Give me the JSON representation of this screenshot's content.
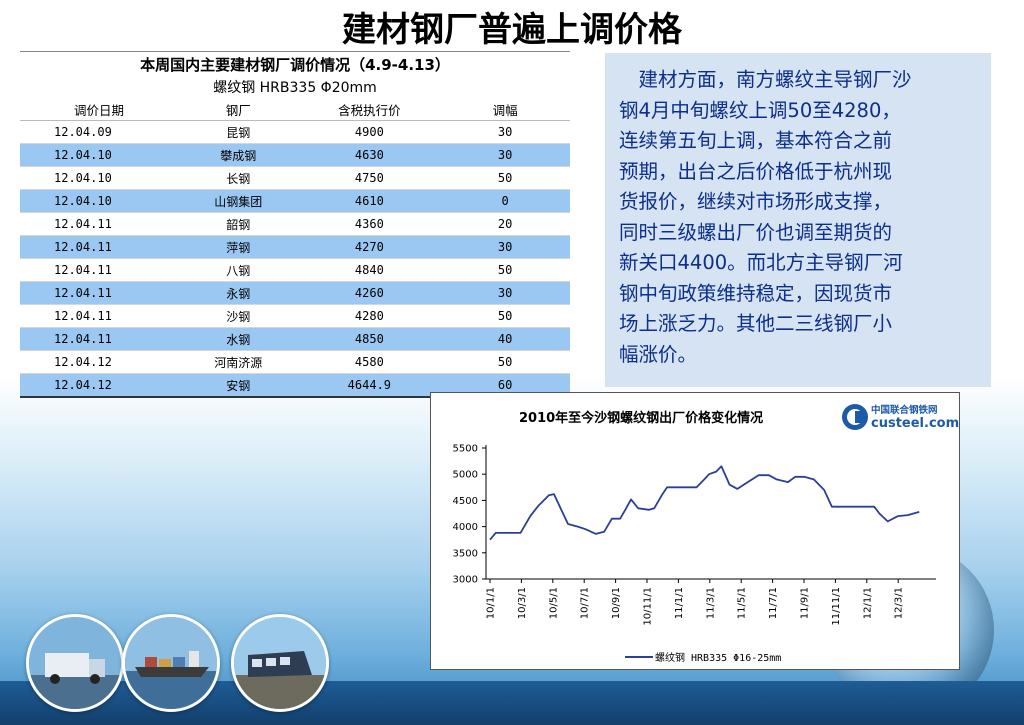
{
  "slide": {
    "title": "建材钢厂普遍上调价格"
  },
  "table": {
    "caption": "本周国内主要建材钢厂调价情况（4.9-4.13）",
    "subcaption": "螺纹钢 HRB335 Φ20mm",
    "headers": [
      "调价日期",
      "钢厂",
      "含税执行价",
      "调幅"
    ],
    "rows": [
      [
        "12.04.09",
        "昆钢",
        "4900",
        "30"
      ],
      [
        "12.04.10",
        "攀成钢",
        "4630",
        "30"
      ],
      [
        "12.04.10",
        "长钢",
        "4750",
        "50"
      ],
      [
        "12.04.10",
        "山钢集团",
        "4610",
        "0"
      ],
      [
        "12.04.11",
        "韶钢",
        "4360",
        "20"
      ],
      [
        "12.04.11",
        "萍钢",
        "4270",
        "30"
      ],
      [
        "12.04.11",
        "八钢",
        "4840",
        "50"
      ],
      [
        "12.04.11",
        "永钢",
        "4260",
        "30"
      ],
      [
        "12.04.11",
        "沙钢",
        "4280",
        "50"
      ],
      [
        "12.04.11",
        "水钢",
        "4850",
        "40"
      ],
      [
        "12.04.12",
        "河南济源",
        "4580",
        "50"
      ],
      [
        "12.04.12",
        "安钢",
        "4644.9",
        "60"
      ]
    ],
    "stripe_color": "#9bc8f2"
  },
  "commentary": {
    "lines": [
      "　建材方面，南方螺纹主导钢厂沙",
      "钢4月中旬螺纹上调50至4280，",
      "连续第五旬上调，基本符合之前",
      "预期，出台之后价格低于杭州现",
      "货报价，继续对市场形成支撑，",
      "同时三级螺出厂价也调至期货的",
      "新关口4400。而北方主导钢厂河",
      "钢中旬政策维持稳定，因现货市",
      "场上涨乏力。其他二三线钢厂小",
      "幅涨价。"
    ],
    "color": "#0b2f8a",
    "background": "#d6e3f2"
  },
  "logo": {
    "cn": "中国联合钢铁网",
    "en": "custeel.com"
  },
  "chart_data": {
    "type": "line",
    "title": "2010年至今沙钢螺纹钢出厂价格变化情况",
    "x_tick_labels": [
      "10/1/1",
      "10/3/1",
      "10/5/1",
      "10/7/1",
      "10/9/1",
      "10/11/1",
      "11/1/1",
      "11/3/1",
      "11/5/1",
      "11/7/1",
      "11/9/1",
      "11/11/1",
      "12/1/1",
      "12/3/1"
    ],
    "ylim": [
      3000,
      5500
    ],
    "y_ticks": [
      3000,
      3500,
      4000,
      4500,
      5000,
      5500
    ],
    "series": [
      {
        "name": "螺纹钢 HRB335 Φ16-25mm",
        "color": "#2a3f9a",
        "x": [
          "2010-01-01",
          "2010-01-12",
          "2010-02-01",
          "2010-03-01",
          "2010-03-20",
          "2010-04-05",
          "2010-04-25",
          "2010-05-05",
          "2010-05-20",
          "2010-06-01",
          "2010-06-20",
          "2010-07-05",
          "2010-07-25",
          "2010-08-10",
          "2010-08-25",
          "2010-09-10",
          "2010-09-20",
          "2010-10-01",
          "2010-10-15",
          "2010-11-05",
          "2010-11-15",
          "2010-12-01",
          "2010-12-10",
          "2011-01-01",
          "2011-01-20",
          "2011-02-05",
          "2011-02-20",
          "2011-03-01",
          "2011-03-15",
          "2011-03-25",
          "2011-04-10",
          "2011-04-25",
          "2011-05-15",
          "2011-06-05",
          "2011-06-25",
          "2011-07-10",
          "2011-08-01",
          "2011-08-15",
          "2011-09-01",
          "2011-09-20",
          "2011-10-10",
          "2011-10-25",
          "2011-11-10",
          "2011-12-01",
          "2011-12-20",
          "2012-01-15",
          "2012-01-25",
          "2012-02-10",
          "2012-03-01",
          "2012-03-20",
          "2012-04-11"
        ],
        "y": [
          3750,
          3880,
          3880,
          3880,
          4200,
          4400,
          4600,
          4620,
          4300,
          4050,
          4000,
          3950,
          3860,
          3900,
          4150,
          4150,
          4320,
          4520,
          4350,
          4320,
          4350,
          4620,
          4750,
          4750,
          4750,
          4750,
          4900,
          5000,
          5050,
          5150,
          4800,
          4720,
          4850,
          4980,
          4980,
          4900,
          4850,
          4950,
          4950,
          4900,
          4700,
          4380,
          4380,
          4380,
          4380,
          4380,
          4250,
          4100,
          4200,
          4220,
          4280
        ]
      }
    ]
  }
}
